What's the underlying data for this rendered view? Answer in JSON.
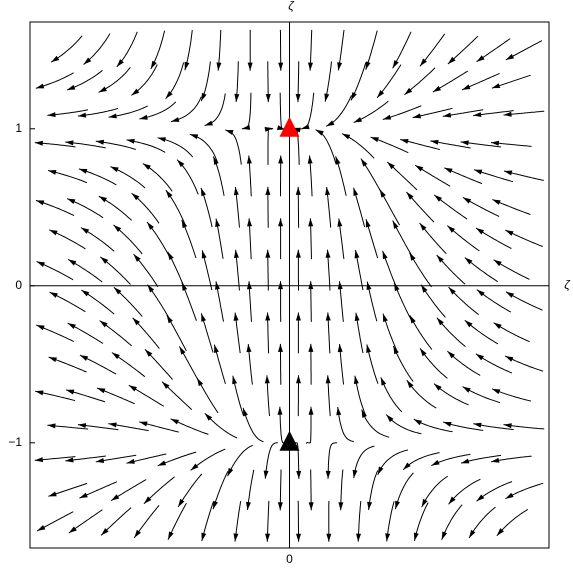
{
  "chart_data": {
    "type": "stream",
    "x_label": "ζ",
    "y_label": "ζ",
    "xlim": [
      -1.65,
      1.65
    ],
    "ylim": [
      -1.67,
      1.68
    ],
    "xticks": [
      0
    ],
    "yticks": [
      {
        "value": -1,
        "label": "−1"
      },
      0,
      1
    ],
    "markers": [
      {
        "x": 0,
        "y": 1,
        "color": "#ff0000"
      },
      {
        "x": 0,
        "y": -1,
        "color": "#000000"
      }
    ]
  }
}
